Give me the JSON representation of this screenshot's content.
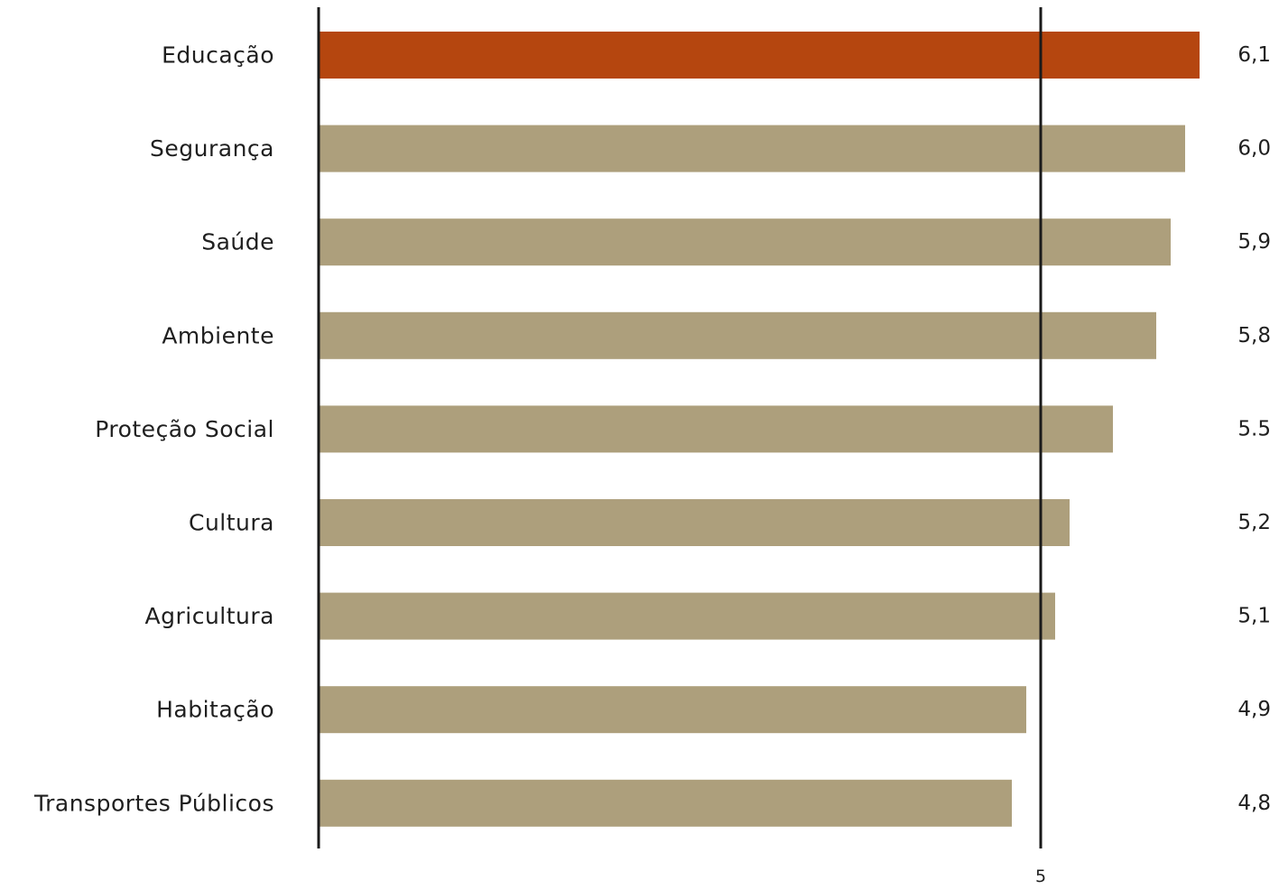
{
  "chart_data": {
    "type": "bar",
    "orientation": "horizontal",
    "title": "",
    "xlabel": "",
    "ylabel": "",
    "categories": [
      "Educação",
      "Segurança",
      "Saúde",
      "Ambiente",
      "Proteção Social",
      "Cultura",
      "Agricultura",
      "Habitação",
      "Transportes Públicos"
    ],
    "values": [
      6.1,
      6.0,
      5.9,
      5.8,
      5.5,
      5.2,
      5.1,
      4.9,
      4.8
    ],
    "value_labels": [
      "6,1",
      "6,0",
      "5,9",
      "5,8",
      "5.5",
      "5,2",
      "5,1",
      "4,9",
      "4,8"
    ],
    "highlight_index": 0,
    "colors": {
      "highlight": "#b5460f",
      "default": "#ad9f7c",
      "axis": "#1a1a1a"
    },
    "xlim": [
      0,
      7.63
    ],
    "reference_line": 5,
    "xticks": [
      {
        "value": 5,
        "label": "5"
      }
    ],
    "grid": false,
    "legend": "none"
  }
}
